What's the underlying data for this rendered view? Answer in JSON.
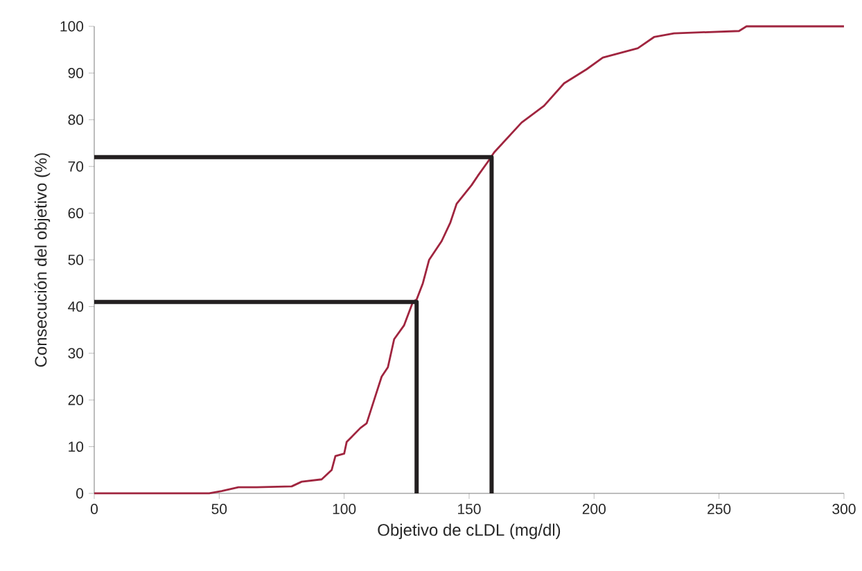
{
  "chart_data": {
    "type": "line",
    "xlabel": "Objetivo de cLDL (mg/dl)",
    "ylabel": "Consecución del objetivo (%)",
    "xlim": [
      0,
      300
    ],
    "ylim": [
      0,
      100
    ],
    "xticks": [
      0,
      50,
      100,
      150,
      200,
      250,
      300
    ],
    "yticks": [
      0,
      10,
      20,
      30,
      40,
      50,
      60,
      70,
      80,
      90,
      100
    ],
    "grid": false,
    "marker": "none",
    "line_style": "solid",
    "series": [
      {
        "color": "#a0253f",
        "x": [
          0,
          30,
          46,
          51,
          57.7,
          65,
          79,
          83,
          91,
          95,
          96.5,
          100,
          101,
          106.5,
          109,
          112,
          115,
          117.5,
          120,
          124,
          127.5,
          129,
          131.5,
          134,
          139,
          142.5,
          145,
          151,
          153.5,
          157.5,
          160,
          171,
          180,
          188,
          197,
          203.5,
          217.5,
          224,
          232,
          258,
          261,
          300
        ],
        "values": [
          0,
          0,
          0,
          0.5,
          1.3,
          1.3,
          1.5,
          2.5,
          3,
          5,
          8,
          8.5,
          11,
          14,
          15,
          20,
          25,
          27,
          33,
          36,
          41,
          41.5,
          45,
          50,
          54,
          58,
          62,
          66,
          68,
          71,
          73,
          79.4,
          83,
          87.8,
          90.8,
          93.3,
          95.3,
          97.7,
          98.5,
          99,
          100,
          100
        ]
      },
      {
        "color": "#231f20",
        "x": [
          0,
          129,
          129
        ],
        "values": [
          41,
          41,
          0
        ]
      },
      {
        "color": "#231f20",
        "x": [
          0,
          159,
          159
        ],
        "values": [
          72,
          72,
          0
        ]
      }
    ]
  }
}
